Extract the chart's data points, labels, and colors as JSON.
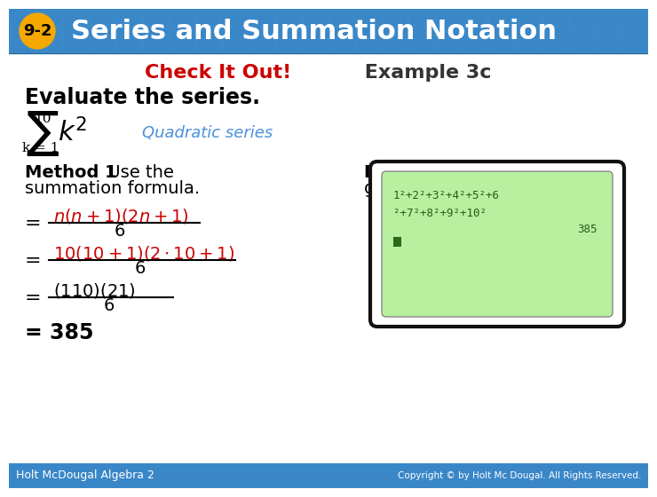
{
  "title_text": "Series and Summation Notation",
  "title_badge": "9-2",
  "header_bg": "#3a87c8",
  "header_text_color": "#ffffff",
  "badge_bg": "#f5a800",
  "body_bg": "#ffffff",
  "check_it_out_color": "#cc0000",
  "example_color": "#333333",
  "subtitle": "Check It Out! Example 3c",
  "evaluate_text": "Evaluate the series.",
  "quadratic_label": "Quadratic series",
  "quadratic_label_color": "#4a90d9",
  "method1_bold": "Method 1",
  "method1_rest": " Use the\nsummation formula.",
  "method2_bold": "Method 2",
  "method2_rest": " Use a\ngraphing calculator.",
  "eq1_left": "=",
  "eq1_right": "n(n + 1)(2n + 1)",
  "eq1_denom": "6",
  "eq2_right": "10(10 + 1)(2 · 10 + 1)",
  "eq2_denom": "6",
  "eq3_right": "(110)(21)",
  "eq3_denom": "6",
  "eq4": "= 385",
  "red_color": "#cc0000",
  "calc_bg": "#b8f0a0",
  "calc_border": "#111111",
  "calc_text_color": "#2a5a1a",
  "calc_line1": "1²+2²+3²+4²+5²+6",
  "calc_line2": "²+7²+8²+9²+10²",
  "calc_line3": "385",
  "footer_text": "Holt McDougal Algebra 2",
  "footer_right": "Copyright © by Holt Mc Dougal. All Rights Reserved.",
  "footer_bg": "#3a87c8",
  "footer_text_color": "#ffffff"
}
